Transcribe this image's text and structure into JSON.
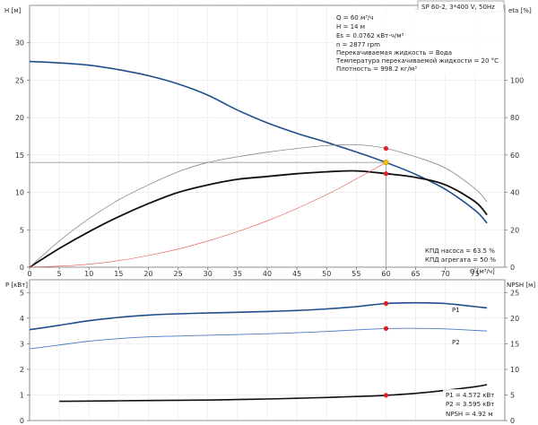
{
  "chart_data": [
    {
      "type": "line",
      "title": "SP 60-2, 3*400 V, 50Hz",
      "ylabel_left": "H [м]",
      "ylabel_right": "eta [%]",
      "xlabel": "Q [м³/ч]",
      "xlim": [
        0,
        80
      ],
      "x_ticks": [
        0,
        5,
        10,
        15,
        20,
        25,
        30,
        35,
        40,
        45,
        50,
        55,
        60,
        65,
        70,
        75
      ],
      "ylim_left": [
        0,
        35
      ],
      "y_ticks_left": [
        0,
        5,
        10,
        15,
        20,
        25,
        30
      ],
      "ylim_right": [
        0,
        140
      ],
      "y_ticks_right": [
        0,
        20,
        40,
        60,
        80,
        100
      ],
      "grid": true,
      "series": [
        {
          "color": "#1f4e8c",
          "axis": "left",
          "x": [
            0,
            5,
            10,
            15,
            20,
            25,
            30,
            35,
            40,
            45,
            50,
            55,
            60,
            65,
            70,
            75,
            77
          ],
          "y": [
            27.5,
            27.3,
            27.0,
            26.4,
            25.6,
            24.5,
            23.0,
            21.0,
            19.3,
            17.9,
            16.7,
            15.4,
            14.0,
            12.4,
            10.4,
            7.6,
            5.9
          ]
        },
        {
          "color": "#111111",
          "axis": "right",
          "x": [
            0,
            5,
            10,
            15,
            20,
            25,
            30,
            35,
            40,
            45,
            50,
            55,
            60,
            65,
            70,
            75,
            77
          ],
          "y": [
            0,
            10,
            19,
            27,
            34,
            40,
            44,
            47,
            48.5,
            50,
            51,
            51.5,
            50,
            48,
            44,
            35,
            28
          ]
        },
        {
          "color": "#888888",
          "axis": "right",
          "x": [
            0,
            5,
            10,
            15,
            20,
            25,
            30,
            35,
            40,
            45,
            50,
            55,
            60,
            65,
            70,
            75,
            77
          ],
          "y": [
            0,
            14,
            26,
            36,
            44,
            51,
            56,
            59,
            61.5,
            63.5,
            65,
            65.5,
            63.5,
            59,
            53,
            42,
            35
          ]
        },
        {
          "color": "#e8514a",
          "axis": "left",
          "x": [
            0,
            10,
            20,
            30,
            40,
            50,
            60
          ],
          "y": [
            0,
            0.39,
            1.56,
            3.5,
            6.2,
            9.7,
            14.0
          ]
        }
      ],
      "operating_point": {
        "x": 60,
        "y": 14
      },
      "markers": [
        {
          "x": 60,
          "y": 63.5,
          "axis": "right"
        },
        {
          "x": 60,
          "y": 50,
          "axis": "right"
        }
      ],
      "annotations": [
        "Q = 60 м³/ч",
        "H = 14 м",
        "Es = 0.0762 кВт-ч/м³",
        "n = 2877 rpm",
        "Перекачиваемая жидкость = Вода",
        "Температура перекачиваемой жидкости = 20 °C",
        "Плотность = 998.2 кг/м³"
      ],
      "efficiency_notes": [
        "КПД насоса = 63.5 %",
        "КПД агрегата = 50 %"
      ]
    },
    {
      "type": "line",
      "ylabel_left": "P [кВт]",
      "ylabel_right": "NPSH [м]",
      "xlim": [
        0,
        80
      ],
      "ylim_left": [
        0,
        5.5
      ],
      "y_ticks_left": [
        0,
        1,
        2,
        3,
        4,
        5
      ],
      "ylim_right": [
        0,
        27.5
      ],
      "y_ticks_right": [
        0,
        5,
        10,
        15,
        20,
        25
      ],
      "grid": true,
      "series": [
        {
          "name": "P1",
          "color": "#1f4e8c",
          "axis": "left",
          "x": [
            0,
            5,
            10,
            15,
            20,
            25,
            30,
            35,
            40,
            45,
            50,
            55,
            60,
            65,
            70,
            75,
            77
          ],
          "y": [
            3.55,
            3.72,
            3.9,
            4.03,
            4.12,
            4.17,
            4.2,
            4.23,
            4.26,
            4.3,
            4.36,
            4.45,
            4.572,
            4.6,
            4.57,
            4.45,
            4.4
          ]
        },
        {
          "name": "P2",
          "color": "#4a79c2",
          "axis": "left",
          "x": [
            0,
            5,
            10,
            15,
            20,
            25,
            30,
            35,
            40,
            45,
            50,
            55,
            60,
            65,
            70,
            75,
            77
          ],
          "y": [
            2.8,
            2.95,
            3.1,
            3.2,
            3.27,
            3.3,
            3.33,
            3.36,
            3.39,
            3.43,
            3.48,
            3.54,
            3.595,
            3.6,
            3.58,
            3.52,
            3.5
          ]
        },
        {
          "name": "NPSH",
          "color": "#111111",
          "axis": "right",
          "x": [
            5,
            10,
            15,
            20,
            25,
            30,
            35,
            40,
            45,
            50,
            55,
            60,
            65,
            70,
            75,
            77
          ],
          "y": [
            3.75,
            3.8,
            3.85,
            3.9,
            3.95,
            4.0,
            4.1,
            4.2,
            4.35,
            4.5,
            4.7,
            4.92,
            5.3,
            5.9,
            6.6,
            7.0
          ]
        }
      ],
      "markers": [
        {
          "x": 60,
          "y": 4.572,
          "axis": "left"
        },
        {
          "x": 60,
          "y": 3.595,
          "axis": "left"
        },
        {
          "x": 60,
          "y": 4.92,
          "axis": "right"
        }
      ],
      "annotations": [
        "P1 = 4.572 кВт",
        "P2 = 3.595 кВт",
        "NPSH = 4.92 м"
      ]
    }
  ]
}
